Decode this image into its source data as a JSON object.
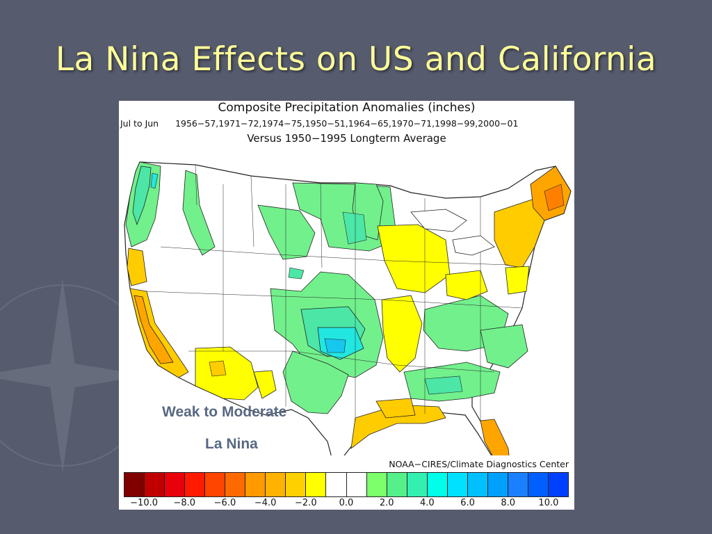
{
  "slide": {
    "title": "La Nina Effects on US and California"
  },
  "figure": {
    "title": "Composite Precipitation Anomalies (inches)",
    "period_label": "Jul to Jun",
    "years": "1956−57,1971−72,1974−75,1950−51,1964−65,1970−71,1998−99,2000−01",
    "baseline": "Versus 1950−1995 Longterm Average",
    "credit": "NOAA−CIRES/Climate Diagnostics Center",
    "callout_line1": "Weak to Moderate",
    "callout_line2": "La Nina"
  },
  "colorbar": {
    "colors": [
      "#800000",
      "#c00000",
      "#e8000b",
      "#ff1a00",
      "#ff4500",
      "#ff6a00",
      "#ff9a00",
      "#ffb300",
      "#ffd000",
      "#ffff00",
      "#ffffff",
      "#ffffff",
      "#7cff6a",
      "#55f08a",
      "#33f0b0",
      "#00ffe8",
      "#00e0ff",
      "#00c0ff",
      "#00a0ff",
      "#1a80ff",
      "#0060ff",
      "#0040ff"
    ],
    "tick_labels": [
      "−10.0",
      "−8.0",
      "−6.0",
      "−4.0",
      "−2.0",
      "0.0",
      "2.0",
      "4.0",
      "6.0",
      "8.0",
      "10.0"
    ]
  },
  "map_colors": {
    "wet_light": "#72f08c",
    "wet_mid": "#4ce6a6",
    "wet_strong": "#22e6e0",
    "wet_max": "#16c8f0",
    "dry_light": "#ffff00",
    "dry_mid": "#ffcc00",
    "dry_strong": "#ffa500",
    "dry_max": "#ff8000",
    "neutral": "#ffffff"
  }
}
